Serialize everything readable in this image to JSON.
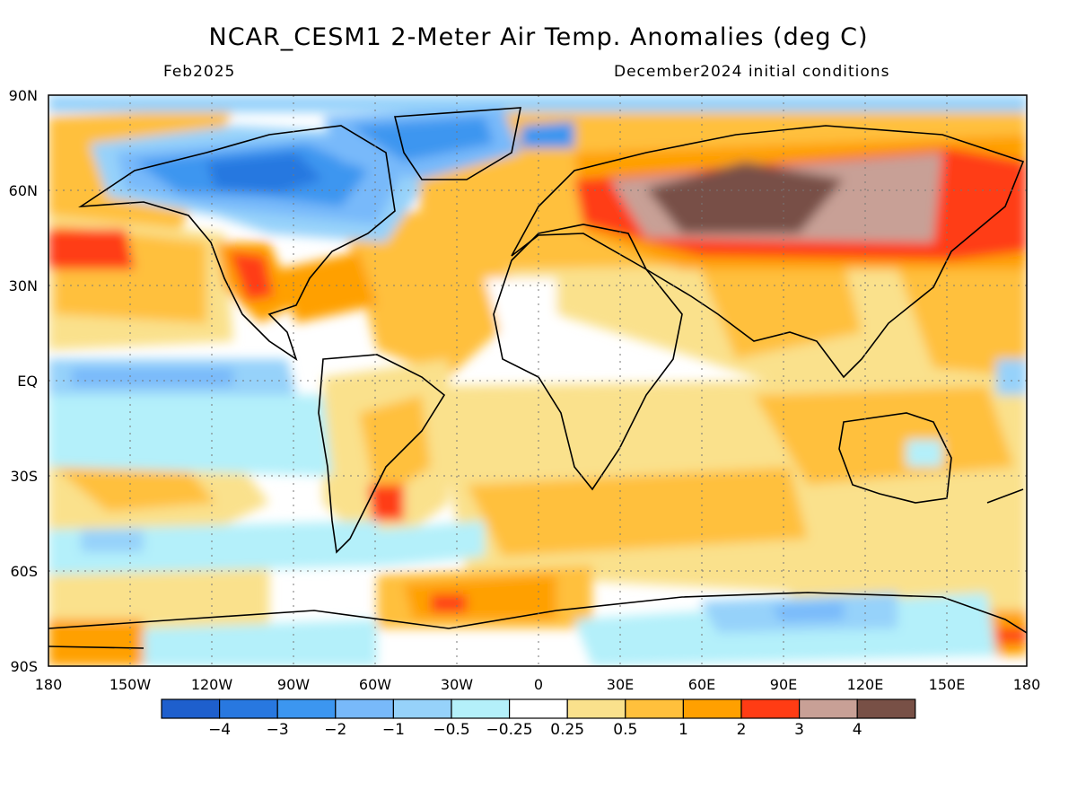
{
  "title": "NCAR_CESM1 2-Meter Air Temp. Anomalies (deg C)",
  "valid_month": "Feb2025",
  "init_label": "December2024 initial conditions",
  "lat_labels": [
    "90N",
    "60N",
    "30N",
    "EQ",
    "30S",
    "60S",
    "90S"
  ],
  "lon_labels": [
    "180",
    "150W",
    "120W",
    "90W",
    "60W",
    "30W",
    "0",
    "30E",
    "60E",
    "90E",
    "120E",
    "150E",
    "180"
  ],
  "colorbar": {
    "colors": [
      "#1e5fcd",
      "#2878e0",
      "#3c96f0",
      "#78b9fa",
      "#96d2fa",
      "#b4f0fa",
      "#ffffff",
      "#fae18c",
      "#ffc03c",
      "#ffa000",
      "#ff3c14",
      "#c8a096",
      "#785046"
    ],
    "labels": [
      "−4",
      "−3",
      "−2",
      "−1",
      "−0.5",
      "−0.25",
      "0.25",
      "0.5",
      "1",
      "2",
      "3",
      "4"
    ]
  }
}
